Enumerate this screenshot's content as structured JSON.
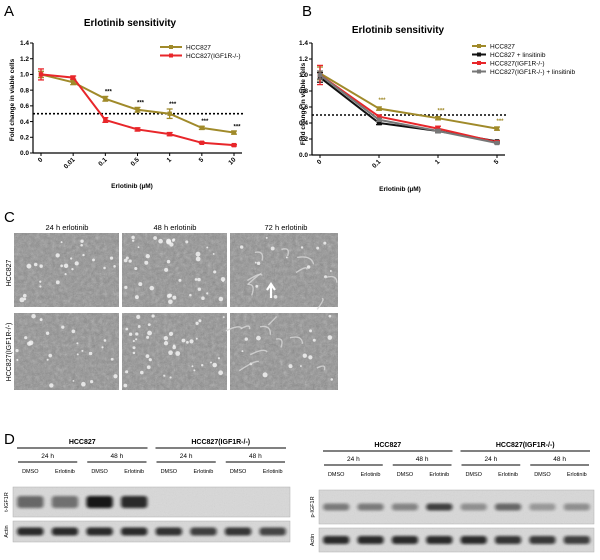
{
  "panels": {
    "a": "A",
    "b": "B",
    "c": "C",
    "d": "D"
  },
  "chart_data": [
    {
      "type": "line",
      "title": "Erlotinib sensitivity",
      "xlabel": "Erlotinib (µM)",
      "ylabel": "Fold change in viable cells",
      "categories": [
        "0",
        "0.01",
        "0.1",
        "0.5",
        "1",
        "5",
        "10"
      ],
      "ylim": [
        0,
        1.4
      ],
      "yticks": [
        "0.0",
        "0.2",
        "0.4",
        "0.6",
        "0.8",
        "1.0",
        "1.2",
        "1.4"
      ],
      "reference_line": 0.5,
      "legend_position": "top-right",
      "series": [
        {
          "name": "HCC827",
          "color": "#a08a2a",
          "values": [
            1.0,
            0.9,
            0.69,
            0.55,
            0.5,
            0.32,
            0.26
          ],
          "errors": [
            0.04,
            0.03,
            0.03,
            0.03,
            0.06,
            0.02,
            0.02
          ]
        },
        {
          "name": "HCC827(IGF1R-/-)",
          "color": "#e8262a",
          "values": [
            1.0,
            0.96,
            0.42,
            0.3,
            0.24,
            0.13,
            0.1
          ],
          "errors": [
            0.07,
            0.02,
            0.03,
            0.02,
            0.02,
            0.01,
            0.01
          ]
        }
      ],
      "annotations": [
        {
          "category": "0.1",
          "text": "***",
          "y": 0.76
        },
        {
          "category": "0.5",
          "text": "***",
          "y": 0.62
        },
        {
          "category": "1",
          "text": "***",
          "y": 0.6
        },
        {
          "category": "5",
          "text": "***",
          "y": 0.38
        },
        {
          "category": "10",
          "text": "***",
          "y": 0.31
        }
      ]
    },
    {
      "type": "line",
      "title": "Erlotinib sensitivity",
      "xlabel": "Erlotinib (µM)",
      "ylabel": "Fold change in viable cells",
      "categories": [
        "0",
        "0.1",
        "1",
        "5"
      ],
      "ylim": [
        0,
        1.4
      ],
      "yticks": [
        "0.0",
        "0.2",
        "0.4",
        "0.6",
        "0.8",
        "1.0",
        "1.2",
        "1.4"
      ],
      "reference_line": 0.5,
      "legend_position": "top-right",
      "series": [
        {
          "name": "HCC827",
          "color": "#a08a2a",
          "values": [
            1.02,
            0.58,
            0.46,
            0.33
          ],
          "errors": [
            0.08,
            0.02,
            0.02,
            0.02
          ]
        },
        {
          "name": "HCC827 + linsitinib",
          "color": "#111111",
          "values": [
            0.97,
            0.4,
            0.3,
            0.17
          ],
          "errors": [
            0.06,
            0.02,
            0.02,
            0.01
          ]
        },
        {
          "name": "HCC827(IGF1R-/-)",
          "color": "#e8262a",
          "values": [
            1.0,
            0.48,
            0.33,
            0.16
          ],
          "errors": [
            0.12,
            0.02,
            0.03,
            0.02
          ]
        },
        {
          "name": "HCC827(IGF1R-/-) + linsitinib",
          "color": "#777777",
          "values": [
            1.0,
            0.44,
            0.3,
            0.15
          ],
          "errors": [
            0.05,
            0.02,
            0.02,
            0.01
          ]
        }
      ],
      "annotations": [
        {
          "category": "0.1",
          "text": "***",
          "y": 0.66
        },
        {
          "category": "1",
          "text": "***",
          "y": 0.53
        },
        {
          "category": "5",
          "text": "***",
          "y": 0.4
        }
      ]
    }
  ],
  "microscopy": {
    "columns": [
      "24 h erlotinib",
      "48 h erlotinib",
      "72 h erlotinib"
    ],
    "rows": [
      "HCC827",
      "HCC827(IGF1R-/-)"
    ]
  },
  "blots": {
    "left": {
      "groups": [
        "HCC827",
        "HCC827(IGF1R-/-)"
      ],
      "times": [
        "24 h",
        "48 h",
        "24 h",
        "48 h"
      ],
      "lanes": [
        "DMSO",
        "Erlotinib",
        "DMSO",
        "Erlotinib",
        "DMSO",
        "Erlotinib",
        "DMSO",
        "Erlotinib"
      ],
      "rows": [
        "t-IGF1R",
        "Actin"
      ]
    },
    "right": {
      "groups": [
        "HCC827",
        "HCC827(IGF1R-/-)"
      ],
      "times": [
        "24 h",
        "48 h",
        "24 h",
        "48 h"
      ],
      "lanes": [
        "DMSO",
        "Erlotinib",
        "DMSO",
        "Erlotinib",
        "DMSO",
        "Erlotinib",
        "DMSO",
        "Erlotinib"
      ],
      "rows": [
        "p-IGF1R",
        "Actin"
      ]
    }
  }
}
